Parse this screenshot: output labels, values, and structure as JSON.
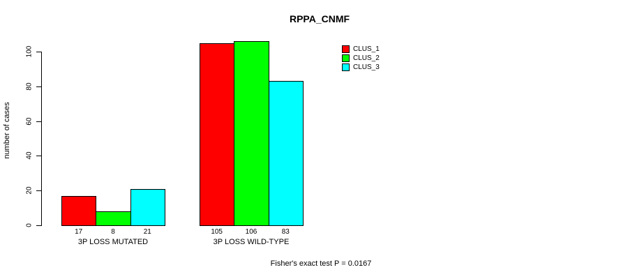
{
  "chart_data": {
    "type": "bar",
    "title": "RPPA_CNMF",
    "xlabel": "",
    "ylabel": "number of cases",
    "categories": [
      "3P LOSS MUTATED",
      "3P LOSS WILD-TYPE"
    ],
    "series": [
      {
        "name": "CLUS_1",
        "color": "#ff0000",
        "values": [
          17,
          105
        ]
      },
      {
        "name": "CLUS_2",
        "color": "#00ff00",
        "values": [
          8,
          106
        ]
      },
      {
        "name": "CLUS_3",
        "color": "#00ffff",
        "values": [
          21,
          83
        ]
      }
    ],
    "ylim": [
      0,
      100
    ],
    "yticks": [
      0,
      20,
      40,
      60,
      80,
      100
    ],
    "bar_value_labels": true,
    "grid": false,
    "legend_position": "top-right",
    "annotation": "Fisher's exact test P = 0.0167"
  }
}
